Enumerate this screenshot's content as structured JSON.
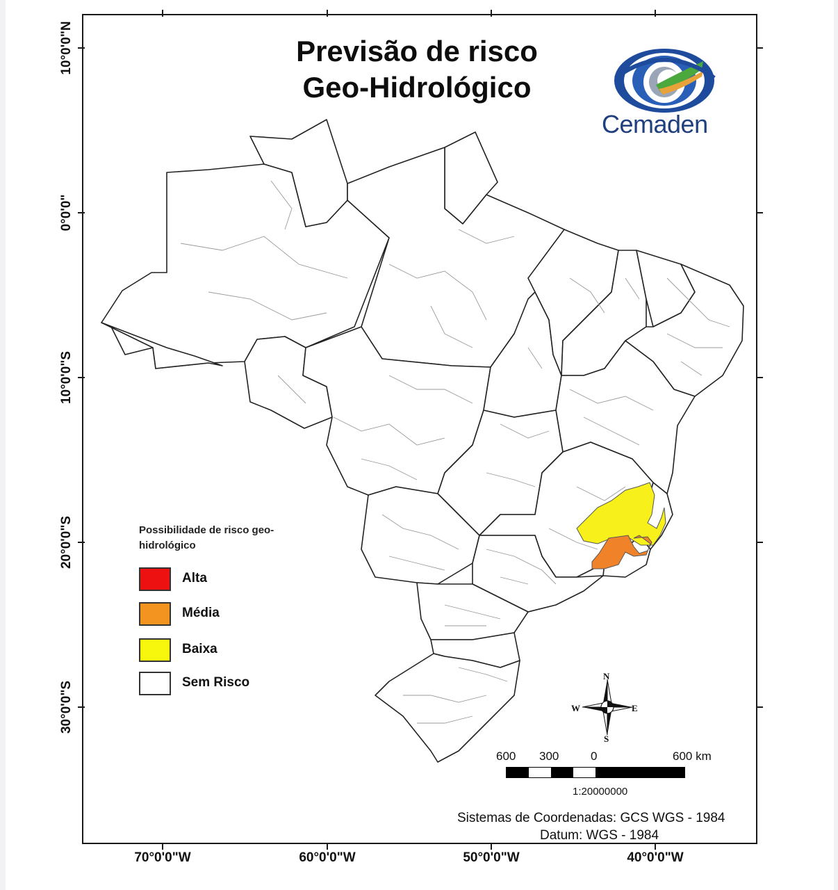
{
  "title": {
    "line1": "Previsão de risco",
    "line2": "Geo-Hidrológico"
  },
  "logo": {
    "text": "Cemaden",
    "colors": {
      "ring": "#1e4b9c",
      "accent_green": "#4aa83c",
      "accent_orange": "#e8a23a"
    }
  },
  "axes": {
    "longitude_labels": [
      "70°0'0\"W",
      "60°0'0\"W",
      "50°0'0\"W",
      "40°0'0\"W"
    ],
    "latitude_labels": [
      "10°0'0\"N",
      "0°0'0\"",
      "10°0'0\"S",
      "20°0'0\"S",
      "30°0'0\"S"
    ]
  },
  "legend": {
    "title": "Possibilidade de risco geo-hidrológico",
    "items": [
      {
        "label": "Alta",
        "color": "#ee1111"
      },
      {
        "label": "Média",
        "color": "#f39420"
      },
      {
        "label": "Baixa",
        "color": "#f7f70e"
      },
      {
        "label": "Sem Risco",
        "color": "#ffffff"
      }
    ]
  },
  "map": {
    "region": "Brasil",
    "risk_areas": [
      {
        "level": "Baixa",
        "color": "#f7f01a"
      },
      {
        "level": "Média",
        "color": "#f0832a"
      }
    ],
    "colors": {
      "border": "#222222",
      "inner_lines": "#9a9a9a"
    }
  },
  "compass": {
    "north": "N",
    "south": "S",
    "east": "E",
    "west": "W"
  },
  "scale": {
    "labels": [
      "600",
      "300",
      "0",
      "600 km"
    ],
    "ratio": "1:20000000"
  },
  "footer": {
    "coordinate_system": "Sistemas de Coordenadas: GCS WGS - 1984",
    "datum": "Datum: WGS - 1984"
  }
}
